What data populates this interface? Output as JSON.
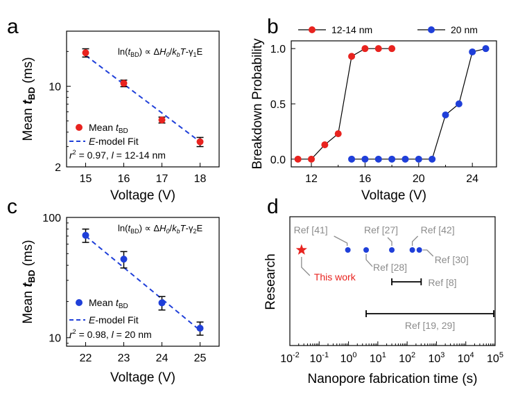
{
  "figure": {
    "panel_labels": [
      "a",
      "b",
      "c",
      "d"
    ]
  },
  "chart_data": [
    {
      "panel": "a",
      "type": "scatter",
      "xlabel": "Voltage (V)",
      "ylabel": "Mean t_BD (ms)",
      "ylabel_main": "Mean ",
      "ylabel_var": "t",
      "ylabel_sub": "BD",
      "ylabel_unit": " (ms)",
      "yscale": "log",
      "xlim": [
        14.5,
        18.5
      ],
      "ylim": [
        2,
        30
      ],
      "xticks": [
        15,
        16,
        17,
        18
      ],
      "yticks": [
        2,
        10
      ],
      "series": [
        {
          "name": "Mean t_BD",
          "x": [
            15,
            16,
            17,
            18
          ],
          "y": [
            19.5,
            10.6,
            5.1,
            3.3
          ],
          "yerr": [
            1.6,
            0.7,
            0.3,
            0.3
          ],
          "color": "#e8231f"
        },
        {
          "name": "E-model Fit",
          "type": "line",
          "style": "dashed",
          "x": [
            15,
            18
          ],
          "y": [
            18.5,
            3.3
          ],
          "color": "#1f3fd9"
        }
      ],
      "legend": {
        "marker_label_main": "Mean ",
        "marker_label_var": "t",
        "marker_label_sub": "BD",
        "fit_label_var": "E",
        "fit_label_rest": "-model Fit",
        "placement": "bottom-left"
      },
      "annotation": "r² = 0.97, l = 12-14 nm",
      "ann_r": "r",
      "ann_sup": "2",
      "ann_mid": " = 0.97, ",
      "ann_l": "l",
      "ann_tail": " = 12-14 nm",
      "equation": "ln(t_BD) ∝ ΔH0/kbT-γ1E",
      "eq_parts": {
        "pre": "ln(",
        "t": "t",
        "tsub": "BD",
        "mid": ") ∝ Δ",
        "H": "H",
        "Hsub": "0",
        "slash": "/",
        "k": "k",
        "ksub": "b",
        "T": "T",
        "dash": "-γ",
        "gsub": "1",
        "E": "E"
      }
    },
    {
      "panel": "b",
      "type": "line",
      "xlabel": "Voltage (V)",
      "ylabel": "Breakdown Probability",
      "xlim": [
        10.5,
        25.8
      ],
      "ylim": [
        -0.07,
        1.07
      ],
      "xticks": [
        12,
        16,
        20,
        24
      ],
      "yticks": [
        "0.0",
        "0.5",
        "1.0"
      ],
      "series": [
        {
          "name": "12-14 nm",
          "x": [
            11,
            12,
            13,
            14,
            15,
            16,
            17,
            18
          ],
          "y": [
            0,
            0,
            0.13,
            0.23,
            0.93,
            1.0,
            1.0,
            1.0
          ],
          "color": "#e8231f"
        },
        {
          "name": "20 nm",
          "x": [
            15,
            16,
            17,
            18,
            19,
            20,
            21,
            22,
            23,
            24,
            25
          ],
          "y": [
            0,
            0,
            0,
            0,
            0,
            0,
            0,
            0.4,
            0.5,
            0.97,
            1.0
          ],
          "color": "#1f3fd9"
        }
      ],
      "legend": {
        "placement": "top"
      }
    },
    {
      "panel": "c",
      "type": "scatter",
      "xlabel": "Voltage (V)",
      "ylabel": "Mean t_BD (ms)",
      "ylabel_main": "Mean ",
      "ylabel_var": "t",
      "ylabel_sub": "BD",
      "ylabel_unit": " (ms)",
      "yscale": "log",
      "xlim": [
        21.5,
        25.5
      ],
      "ylim": [
        8.5,
        100
      ],
      "xticks": [
        22,
        23,
        24,
        25
      ],
      "yticks": [
        10,
        100
      ],
      "series": [
        {
          "name": "Mean t_BD",
          "x": [
            22,
            23,
            24,
            25
          ],
          "y": [
            71,
            45,
            19.5,
            12
          ],
          "yerr": [
            9,
            7,
            2.5,
            1.5
          ],
          "color": "#1f3fd9"
        },
        {
          "name": "E-model Fit",
          "type": "line",
          "style": "dashed",
          "x": [
            22,
            25
          ],
          "y": [
            70,
            11.5
          ],
          "color": "#1f3fd9"
        }
      ],
      "legend": {
        "marker_label_main": "Mean ",
        "marker_label_var": "t",
        "marker_label_sub": "BD",
        "fit_label_var": "E",
        "fit_label_rest": "-model Fit",
        "placement": "bottom-left"
      },
      "annotation": "r² = 0.98, l = 20 nm",
      "ann_r": "r",
      "ann_sup": "2",
      "ann_mid": " = 0.98, ",
      "ann_l": "l",
      "ann_tail": " = 20 nm",
      "equation": "ln(t_BD) ∝ ΔH0/kbT-γ2E",
      "eq_parts": {
        "pre": "ln(",
        "t": "t",
        "tsub": "BD",
        "mid": ") ∝ Δ",
        "H": "H",
        "Hsub": "0",
        "slash": "/",
        "k": "k",
        "ksub": "b",
        "T": "T",
        "dash": "-γ",
        "gsub": "2",
        "E": "E"
      }
    },
    {
      "panel": "d",
      "type": "scatter",
      "xlabel": "Nanopore fabrication time (s)",
      "ylabel": "Research",
      "xscale": "log",
      "xlim_exp": [
        -2,
        5
      ],
      "tick_base": "10",
      "tick_exps": [
        "-2",
        "-1",
        "0",
        "1",
        "2",
        "3",
        "4",
        "5"
      ],
      "points": [
        {
          "label": "This work",
          "x": 0.025,
          "marker": "star",
          "color": "#e8231f"
        },
        {
          "label": "Ref [41]",
          "x": 0.95,
          "color": "#1f3fd9"
        },
        {
          "label": "Ref [28]",
          "x": 4,
          "color": "#1f3fd9"
        },
        {
          "label": "Ref [27]",
          "x": 30,
          "color": "#1f3fd9"
        },
        {
          "label": "Ref [42]",
          "x": 150,
          "color": "#1f3fd9"
        },
        {
          "label": "Ref [30]",
          "x": 260,
          "color": "#1f3fd9"
        }
      ],
      "ranges": [
        {
          "label": "Ref [8]",
          "from": 30,
          "to": 300
        },
        {
          "label": "Ref [19, 29]",
          "from": 4,
          "to": 90000
        }
      ]
    }
  ]
}
